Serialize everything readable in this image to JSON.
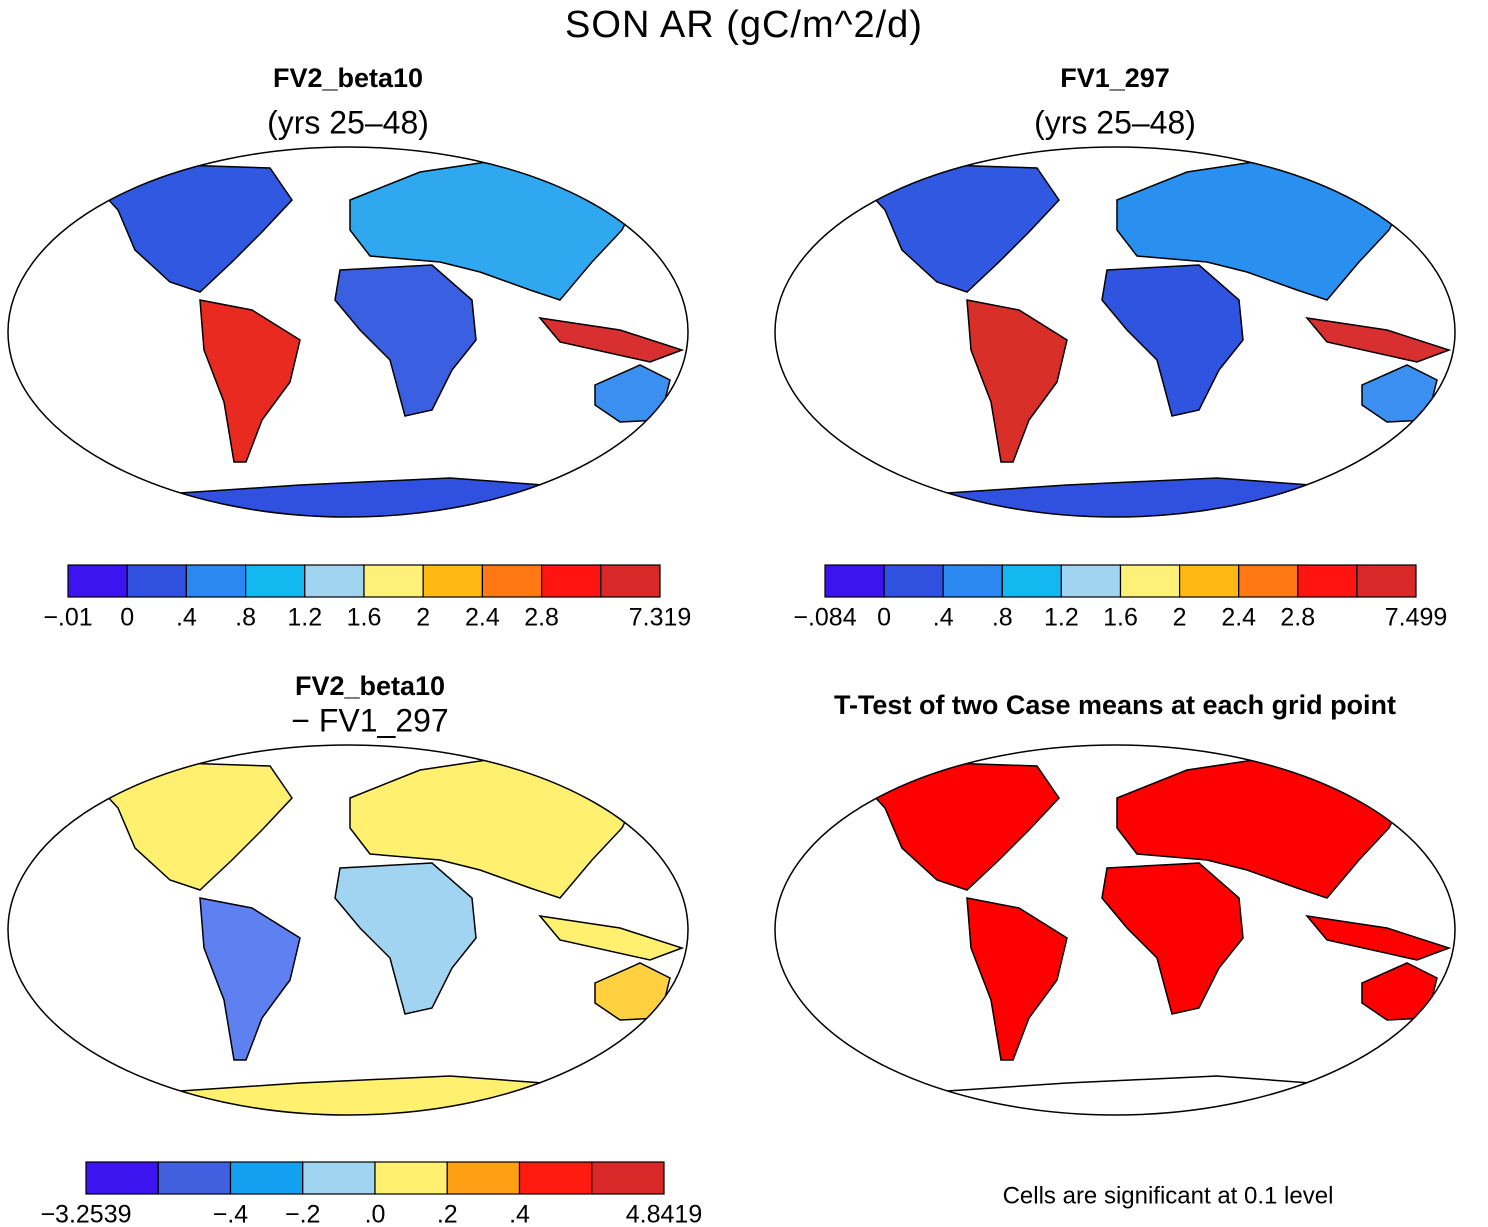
{
  "title": "SON AR (gC/m^2/d)",
  "panels": [
    {
      "title": "FV2_beta10",
      "subtitle": "(yrs 25–48)",
      "colorbar": {
        "colors": [
          "#3c14f0",
          "#3050e0",
          "#2a88f0",
          "#14b8f0",
          "#a0d4f0",
          "#fff07a",
          "#ffb814",
          "#ff7814",
          "#ff1410",
          "#d82828"
        ],
        "labels": [
          "−.01",
          "0",
          ".4",
          ".8",
          "1.2",
          "1.6",
          "2",
          "2.4",
          "2.8",
          null,
          "7.319"
        ]
      }
    },
    {
      "title": "FV1_297",
      "subtitle": "(yrs 25–48)",
      "colorbar": {
        "colors": [
          "#3c14f0",
          "#3050e0",
          "#2a88f0",
          "#14b8f0",
          "#a0d4f0",
          "#fff07a",
          "#ffb814",
          "#ff7814",
          "#ff1410",
          "#d82828"
        ],
        "labels": [
          "−.084",
          "0",
          ".4",
          ".8",
          "1.2",
          "1.6",
          "2",
          "2.4",
          "2.8",
          null,
          "7.499"
        ]
      }
    },
    {
      "title": "FV2_beta10",
      "subtitle": "− FV1_297",
      "colorbar": {
        "colors": [
          "#3c14f0",
          "#4060e0",
          "#14a0f0",
          "#a0d4f0",
          "#fff070",
          "#ffa014",
          "#ff1a10",
          "#d82828"
        ],
        "labels": [
          "−3.2539",
          null,
          "−.4",
          "−.2",
          ".0",
          ".2",
          ".4",
          null,
          "4.8419"
        ]
      }
    },
    {
      "title": "T-Test of two Case means at each grid point"
    }
  ],
  "note": "Cells are significant at 0.1 level"
}
